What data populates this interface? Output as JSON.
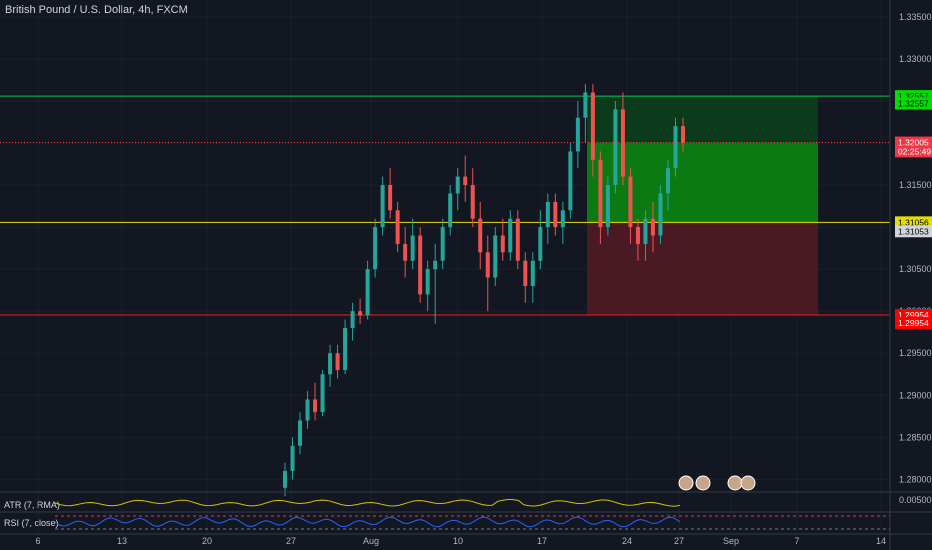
{
  "window": {
    "title": "British Pound / U.S. Dollar, 4h, FXCM"
  },
  "price_axis": {
    "ticks": [
      "1.33500",
      "1.33000",
      "1.32500",
      "1.32000",
      "1.31500",
      "1.31000",
      "1.30500",
      "1.30000",
      "1.29500",
      "1.29000",
      "1.28500",
      "1.28000"
    ],
    "range": [
      1.2785,
      1.337
    ]
  },
  "time_axis": {
    "labels": [
      "6",
      "13",
      "20",
      "27",
      "Aug",
      "10",
      "17",
      "24",
      "27",
      "Sep",
      "7",
      "14"
    ]
  },
  "price_tags": [
    {
      "text": "1.32557",
      "bg": "#00e000",
      "fg": "#000000",
      "price": 1.32557
    },
    {
      "text": "1.32557",
      "bg": "#00e000",
      "fg": "#000000",
      "price": 1.3247
    },
    {
      "text": "1.32005",
      "bg": "#f23645",
      "fg": "#ffffff",
      "price": 1.32005
    },
    {
      "text": "02:25:49",
      "bg": "#f23645",
      "fg": "#ffffff",
      "price": 1.319
    },
    {
      "text": "1.31056",
      "bg": "#e3e000",
      "fg": "#000000",
      "price": 1.31056
    },
    {
      "text": "1.31053",
      "bg": "#d1d4dc",
      "fg": "#000000",
      "price": 1.3095
    },
    {
      "text": "1.29954",
      "bg": "#ff0000",
      "fg": "#ffffff",
      "price": 1.29954
    },
    {
      "text": "1.29954",
      "bg": "#ff0000",
      "fg": "#ffffff",
      "price": 1.2986
    }
  ],
  "levels": [
    {
      "name": "take-profit",
      "price": 1.32557,
      "color": "#00c853"
    },
    {
      "name": "last-price",
      "price": 1.32005,
      "color": "#f23645"
    },
    {
      "name": "entry",
      "price": 1.31056,
      "color": "#e3e000"
    },
    {
      "name": "stop-loss",
      "price": 1.29954,
      "color": "#ff1a1a"
    }
  ],
  "position": {
    "type": "long",
    "entry": 1.31056,
    "target": 1.32557,
    "stop": 1.29954,
    "current": 1.32005
  },
  "indicators": [
    {
      "label": "ATR (7, RMA)",
      "value": "0.00500"
    },
    {
      "label": "RSI (7, close)"
    }
  ],
  "colors": {
    "up": "#26a69a",
    "down": "#ef5350",
    "bg": "#131722",
    "grid": "#2a2e39",
    "atr": "#d4c200",
    "rsi": "#2962ff"
  },
  "chart_data": {
    "type": "candlestick",
    "title": "British Pound / U.S. Dollar, 4h, FXCM",
    "ohlc": [
      [
        1.279,
        1.282,
        1.278,
        1.281
      ],
      [
        1.281,
        1.285,
        1.28,
        1.284
      ],
      [
        1.284,
        1.288,
        1.283,
        1.287
      ],
      [
        1.287,
        1.2905,
        1.286,
        1.2895
      ],
      [
        1.2895,
        1.2915,
        1.287,
        1.288
      ],
      [
        1.288,
        1.293,
        1.2875,
        1.2925
      ],
      [
        1.2925,
        1.296,
        1.291,
        1.295
      ],
      [
        1.295,
        1.296,
        1.292,
        1.293
      ],
      [
        1.293,
        1.299,
        1.2925,
        1.298
      ],
      [
        1.298,
        1.301,
        1.2965,
        1.3
      ],
      [
        1.3,
        1.3015,
        1.2985,
        1.2995
      ],
      [
        1.2995,
        1.306,
        1.299,
        1.305
      ],
      [
        1.305,
        1.311,
        1.304,
        1.31
      ],
      [
        1.31,
        1.316,
        1.309,
        1.315
      ],
      [
        1.315,
        1.317,
        1.311,
        1.312
      ],
      [
        1.312,
        1.313,
        1.307,
        1.308
      ],
      [
        1.308,
        1.31,
        1.304,
        1.306
      ],
      [
        1.306,
        1.311,
        1.305,
        1.309
      ],
      [
        1.309,
        1.31,
        1.301,
        1.302
      ],
      [
        1.302,
        1.306,
        1.3,
        1.305
      ],
      [
        1.305,
        1.308,
        1.2985,
        1.306
      ],
      [
        1.306,
        1.311,
        1.305,
        1.31
      ],
      [
        1.31,
        1.315,
        1.309,
        1.314
      ],
      [
        1.314,
        1.317,
        1.312,
        1.316
      ],
      [
        1.316,
        1.3185,
        1.313,
        1.315
      ],
      [
        1.315,
        1.317,
        1.31,
        1.311
      ],
      [
        1.311,
        1.313,
        1.305,
        1.307
      ],
      [
        1.307,
        1.309,
        1.3,
        1.304
      ],
      [
        1.304,
        1.31,
        1.303,
        1.309
      ],
      [
        1.309,
        1.311,
        1.306,
        1.307
      ],
      [
        1.307,
        1.312,
        1.306,
        1.311
      ],
      [
        1.311,
        1.312,
        1.305,
        1.306
      ],
      [
        1.306,
        1.307,
        1.301,
        1.303
      ],
      [
        1.303,
        1.307,
        1.301,
        1.306
      ],
      [
        1.306,
        1.312,
        1.305,
        1.31
      ],
      [
        1.31,
        1.314,
        1.308,
        1.313
      ],
      [
        1.313,
        1.314,
        1.309,
        1.31
      ],
      [
        1.31,
        1.313,
        1.308,
        1.312
      ],
      [
        1.312,
        1.32,
        1.311,
        1.319
      ],
      [
        1.319,
        1.325,
        1.317,
        1.323
      ],
      [
        1.323,
        1.327,
        1.32,
        1.326
      ],
      [
        1.326,
        1.327,
        1.316,
        1.318
      ],
      [
        1.318,
        1.319,
        1.308,
        1.31
      ],
      [
        1.31,
        1.316,
        1.309,
        1.315
      ],
      [
        1.315,
        1.325,
        1.314,
        1.324
      ],
      [
        1.324,
        1.326,
        1.315,
        1.316
      ],
      [
        1.316,
        1.317,
        1.308,
        1.31
      ],
      [
        1.31,
        1.311,
        1.306,
        1.308
      ],
      [
        1.308,
        1.312,
        1.306,
        1.311
      ],
      [
        1.311,
        1.313,
        1.307,
        1.309
      ],
      [
        1.309,
        1.315,
        1.308,
        1.314
      ],
      [
        1.314,
        1.318,
        1.312,
        1.317
      ],
      [
        1.317,
        1.323,
        1.316,
        1.322
      ],
      [
        1.322,
        1.323,
        1.319,
        1.32
      ]
    ]
  }
}
